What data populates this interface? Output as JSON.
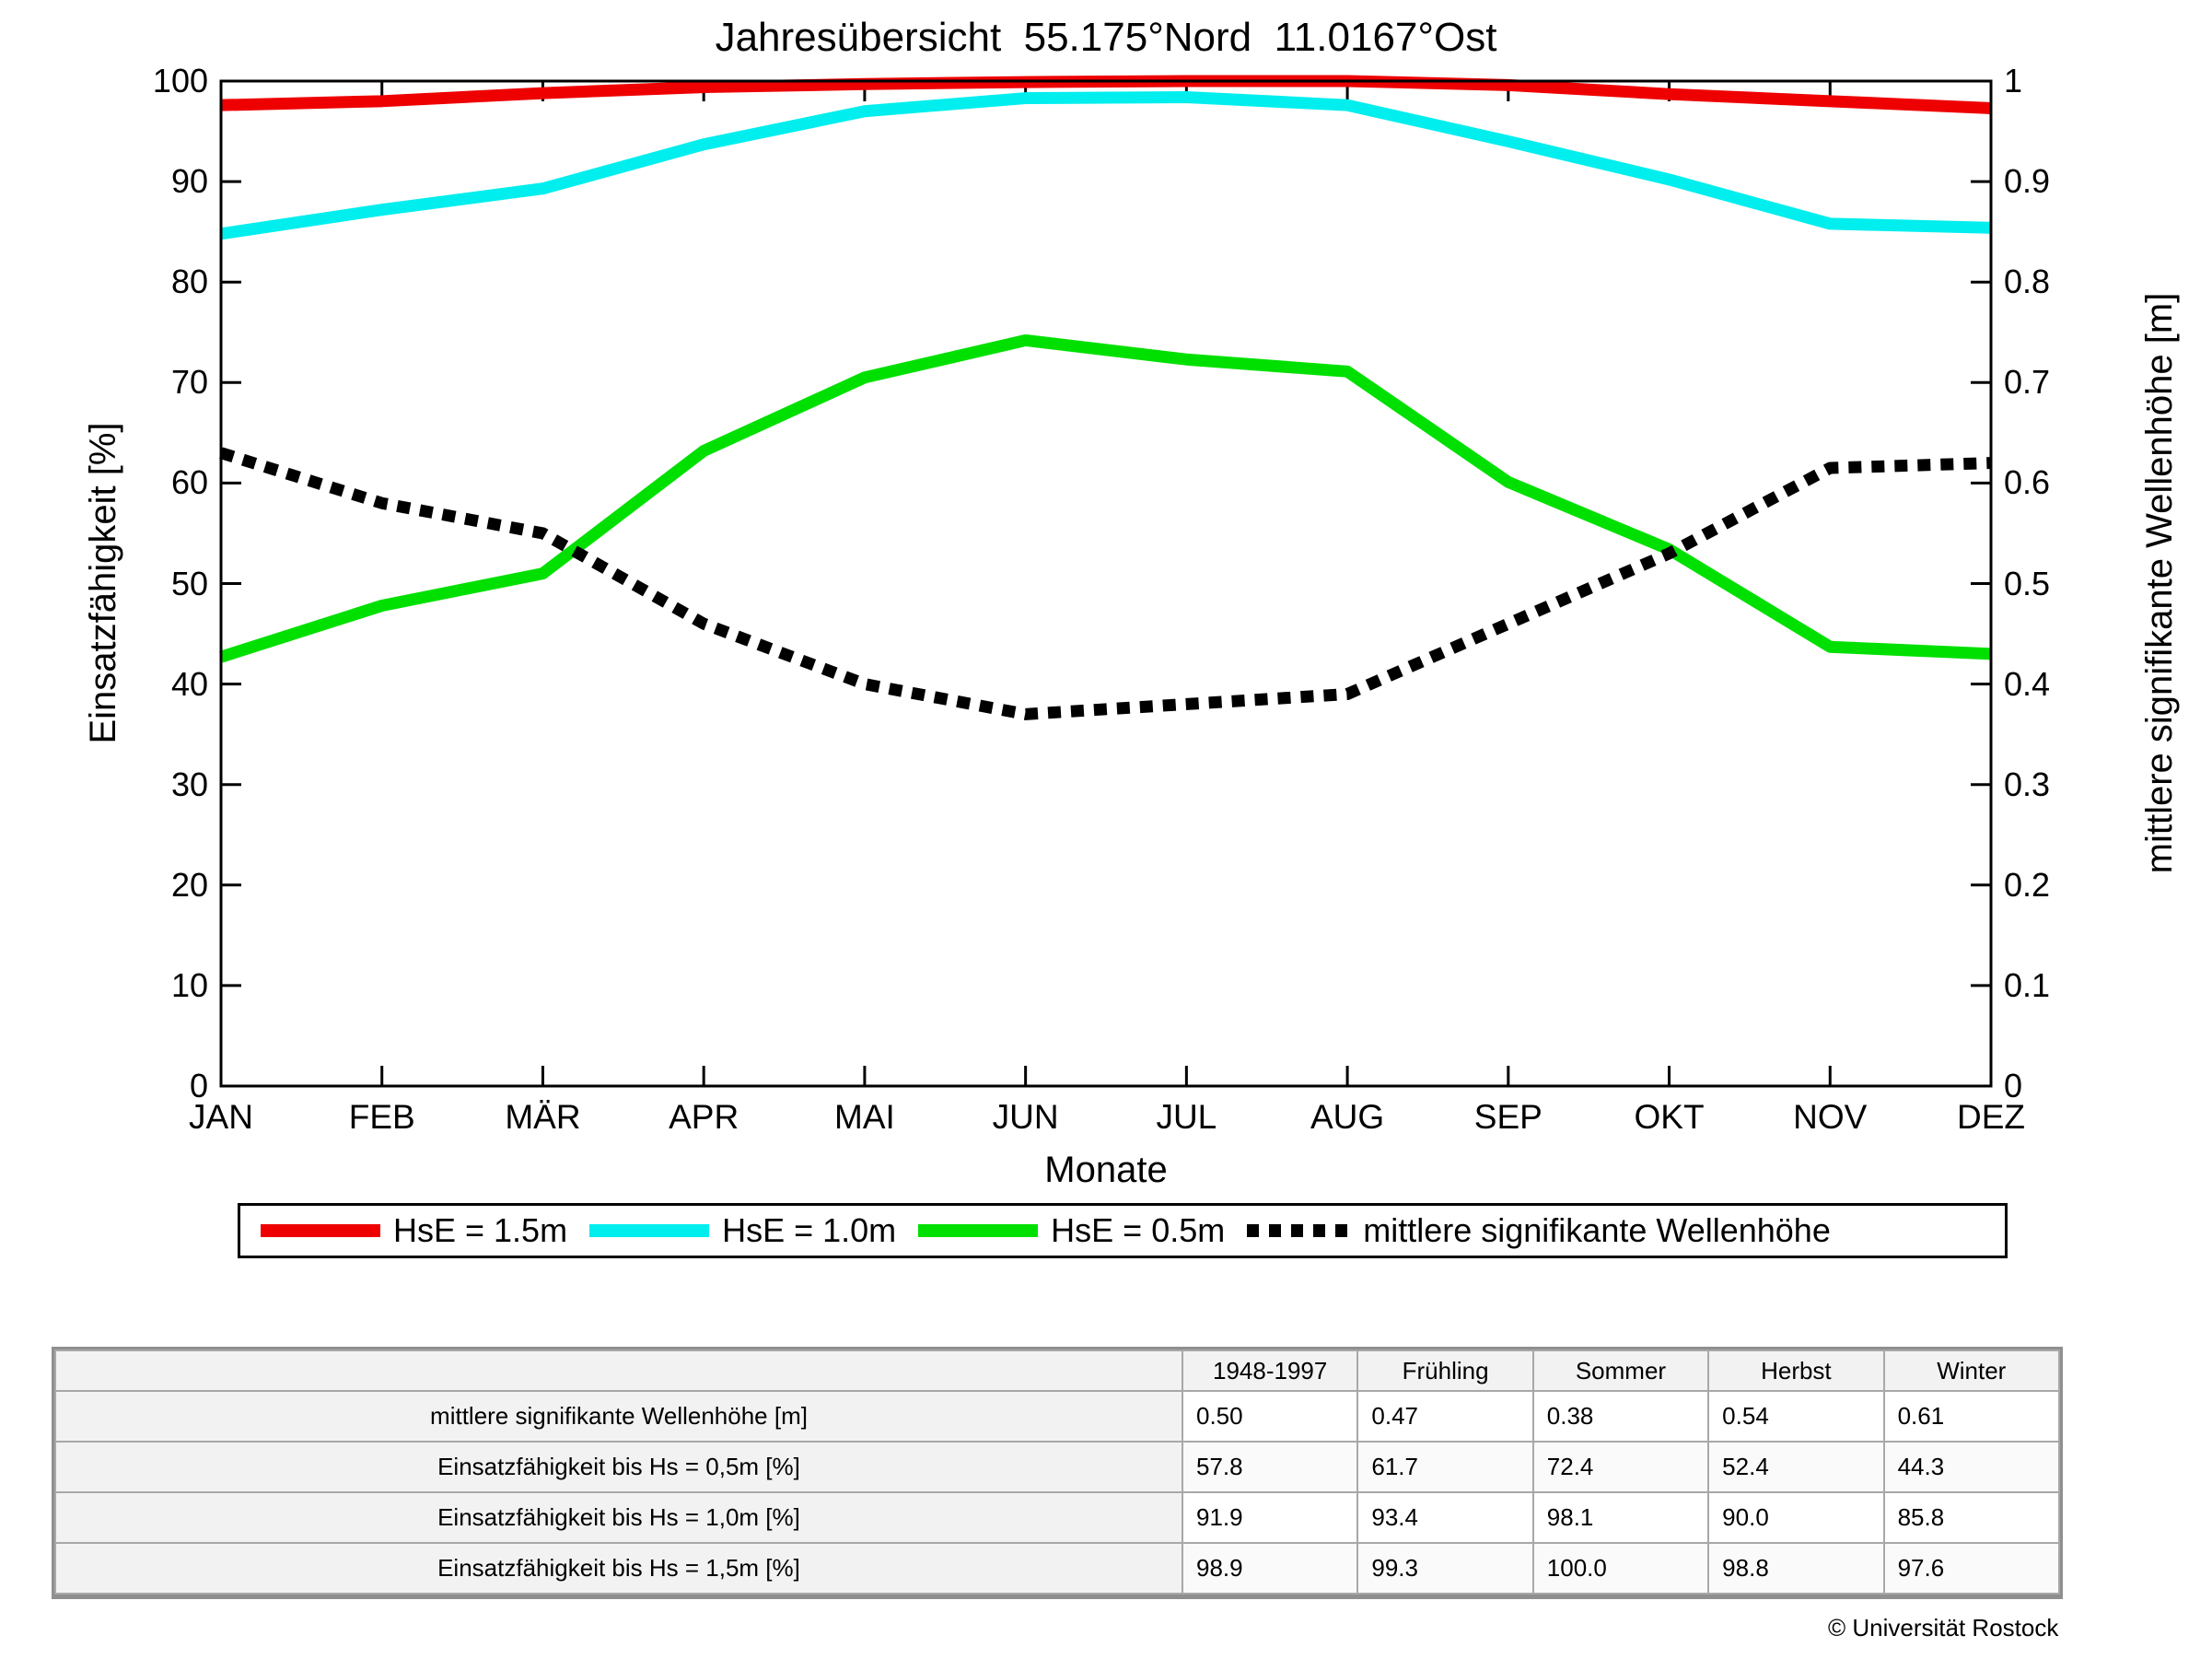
{
  "chart_data": {
    "type": "line",
    "title": "Jahresübersicht  55.175°Nord  11.0167°Ost",
    "xlabel": "Monate",
    "ylabel_left": "Einsatzfähigkeit [%]",
    "ylabel_right": "mittlere signifikante Wellenhöhe [m]",
    "categories": [
      "JAN",
      "FEB",
      "MÄR",
      "APR",
      "MAI",
      "JUN",
      "JUL",
      "AUG",
      "SEP",
      "OKT",
      "NOV",
      "DEZ"
    ],
    "left_axis": {
      "min": 0,
      "max": 100,
      "tick_labels": [
        "0",
        "10",
        "20",
        "30",
        "40",
        "50",
        "60",
        "70",
        "80",
        "90",
        "100"
      ]
    },
    "right_axis": {
      "min": 0,
      "max": 1,
      "tick_labels": [
        "0",
        "0.1",
        "0.2",
        "0.3",
        "0.4",
        "0.5",
        "0.6",
        "0.7",
        "0.8",
        "0.9",
        "1"
      ]
    },
    "grid": false,
    "legend_position": "below",
    "series": [
      {
        "name": "HsE = 1.5m",
        "color": "#ee0000",
        "style": "solid",
        "axis": "left",
        "values": [
          97.6,
          98.0,
          98.8,
          99.4,
          99.7,
          99.9,
          100,
          100,
          99.6,
          98.7,
          98.0,
          97.3
        ]
      },
      {
        "name": "HsE = 1.0m",
        "color": "#00eeee",
        "style": "solid",
        "axis": "left",
        "values": [
          84.8,
          87.2,
          89.3,
          93.7,
          97.0,
          98.3,
          98.4,
          97.6,
          94.0,
          90.2,
          85.8,
          85.4
        ]
      },
      {
        "name": "HsE = 0.5m",
        "color": "#00e000",
        "style": "solid",
        "axis": "left",
        "values": [
          42.7,
          47.8,
          51.0,
          63.2,
          70.5,
          74.2,
          72.3,
          71.1,
          60.1,
          53.4,
          43.7,
          43.0
        ]
      },
      {
        "name": "mittlere signifikante Wellenhöhe",
        "color": "#000000",
        "style": "dotted",
        "axis": "right",
        "values": [
          0.63,
          0.58,
          0.55,
          0.46,
          0.4,
          0.37,
          0.38,
          0.39,
          0.46,
          0.53,
          0.615,
          0.62
        ]
      }
    ]
  },
  "table": {
    "headers": [
      "",
      "1948-1997",
      "Frühling",
      "Sommer",
      "Herbst",
      "Winter"
    ],
    "rows": [
      {
        "label": "mittlere signifikante Wellenhöhe [m]",
        "values": [
          "0.50",
          "0.47",
          "0.38",
          "0.54",
          "0.61"
        ]
      },
      {
        "label": "Einsatzfähigkeit bis Hs = 0,5m [%]",
        "values": [
          "57.8",
          "61.7",
          "72.4",
          "52.4",
          "44.3"
        ]
      },
      {
        "label": "Einsatzfähigkeit bis Hs = 1,0m [%]",
        "values": [
          "91.9",
          "93.4",
          "98.1",
          "90.0",
          "85.8"
        ]
      },
      {
        "label": "Einsatzfähigkeit bis Hs = 1,5m [%]",
        "values": [
          "98.9",
          "99.3",
          "100.0",
          "98.8",
          "97.6"
        ]
      }
    ]
  },
  "footer": {
    "credit": "© Universität Rostock"
  }
}
